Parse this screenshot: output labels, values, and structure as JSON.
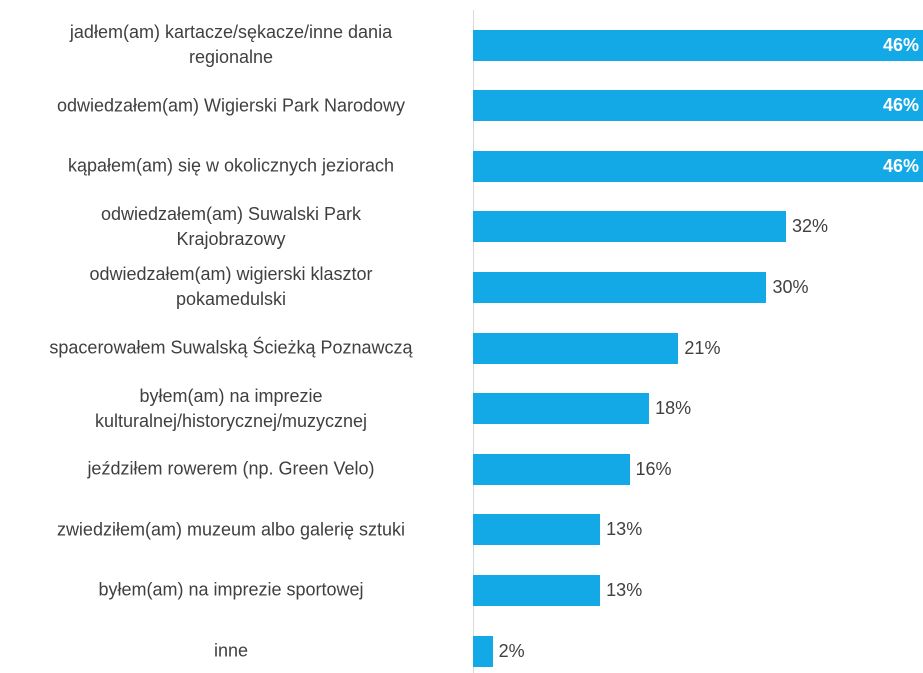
{
  "chart_data": {
    "type": "hbar",
    "categories": [
      "jadłem(am) kartacze/sękacze/inne dania\nregionalne",
      "odwiedzałem(am) Wigierski Park Narodowy",
      "kąpałem(am) się w okolicznych jeziorach",
      "odwiedzałem(am) Suwalski Park\nKrajobrazowy",
      "odwiedzałem(am) wigierski klasztor\npokamedulski",
      "spacerowałem Suwalską Ścieżką Poznawczą",
      "byłem(am) na imprezie\nkulturalnej/historycznej/muzycznej",
      "jeździłem rowerem (np. Green Velo)",
      "zwiedziłem(am) muzeum albo galerię sztuki",
      "byłem(am) na imprezie sportowej",
      "inne"
    ],
    "values": [
      46,
      46,
      46,
      32,
      30,
      21,
      18,
      16,
      13,
      13,
      2
    ],
    "value_labels": [
      "46%",
      "46%",
      "46%",
      "32%",
      "30%",
      "21%",
      "18%",
      "16%",
      "13%",
      "13%",
      "2%"
    ],
    "color": "#12a9e6",
    "xlim": [
      0,
      46
    ]
  }
}
